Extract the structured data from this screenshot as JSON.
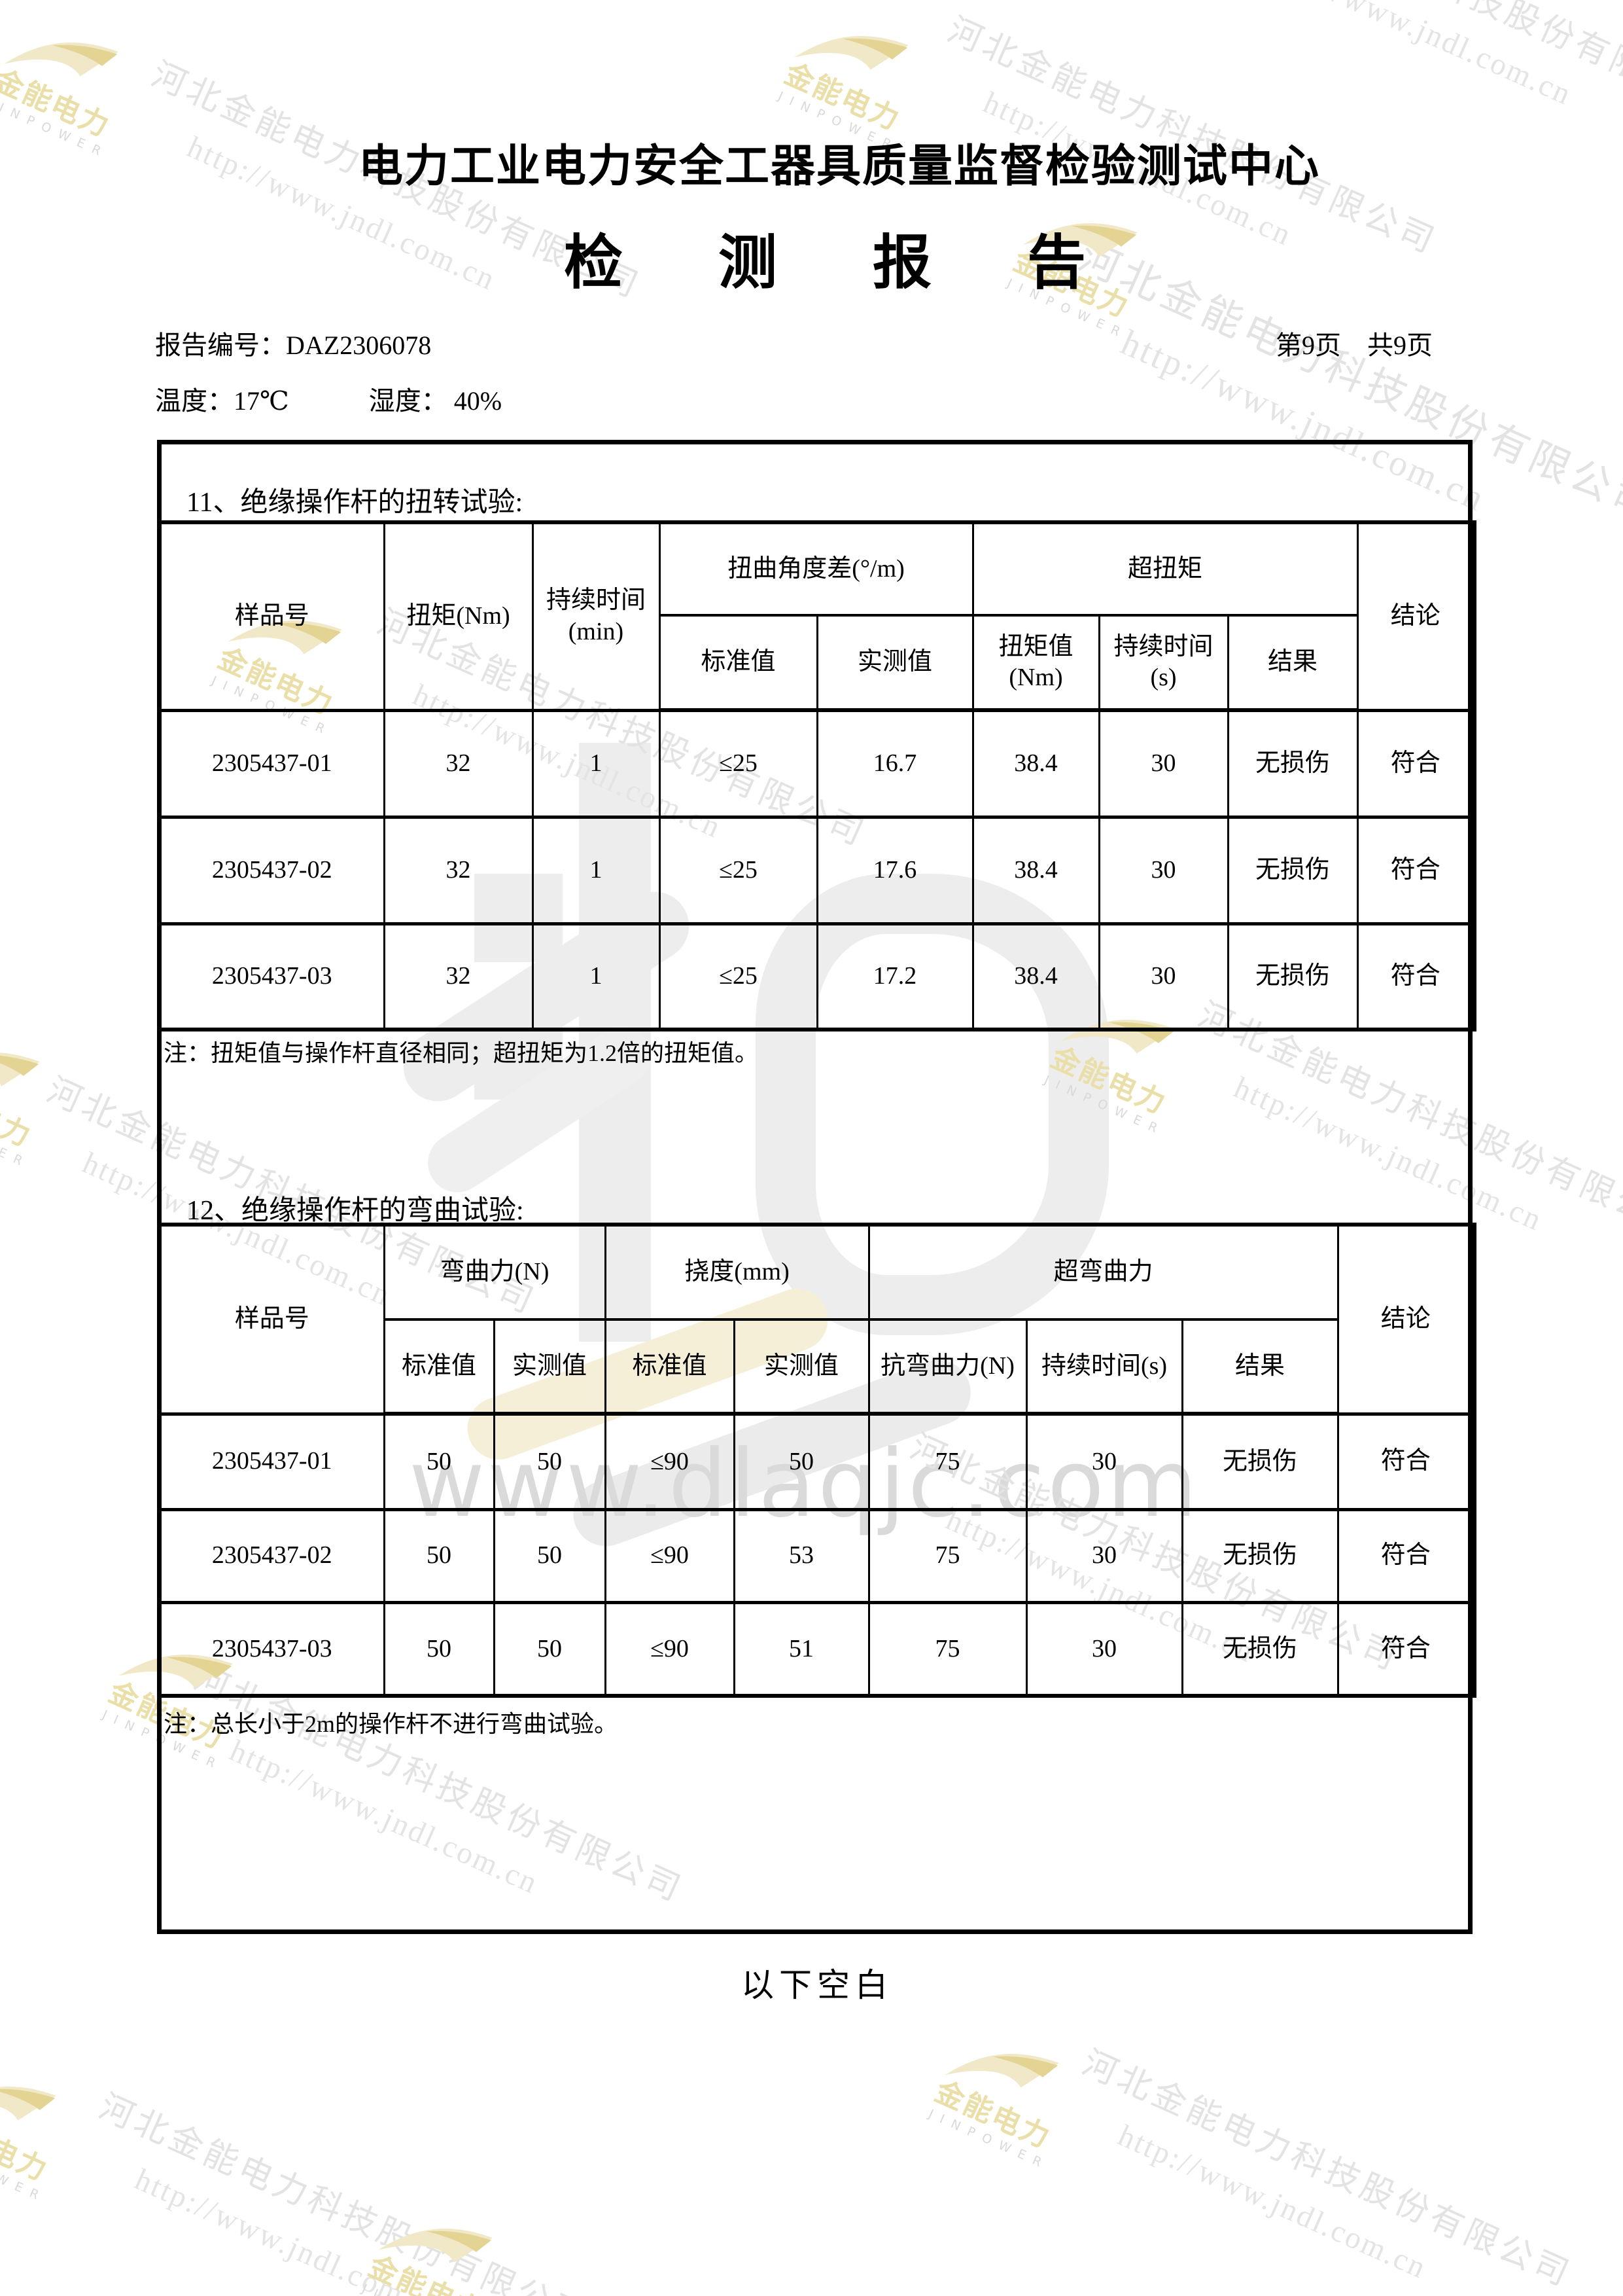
{
  "header": {
    "org_title": "电力工业电力安全工器具质量监督检验测试中心",
    "report_title": "检测报告",
    "report_no_label": "报告编号：",
    "report_no": "DAZ2306078",
    "page_info": "第9页　共9页",
    "temp_label": "温度：",
    "temp_value": "17℃",
    "humidity_label": "湿度：",
    "humidity_value": "40%"
  },
  "section11": {
    "title": "11、绝缘操作杆的扭转试验:",
    "table": {
      "headers": {
        "sample_no": "样品号",
        "torque": "扭矩(Nm)",
        "duration_min": "持续时间(min)",
        "twist_angle_diff": "扭曲角度差(°/m)",
        "over_torque": "超扭矩",
        "conclusion": "结论",
        "standard_value": "标准值",
        "measured_value": "实测值",
        "torque_value": "扭矩值(Nm)",
        "duration_s": "持续时间(s)",
        "result": "结果"
      },
      "rows": [
        [
          "2305437-01",
          "32",
          "1",
          "≤25",
          "16.7",
          "38.4",
          "30",
          "无损伤",
          "符合"
        ],
        [
          "2305437-02",
          "32",
          "1",
          "≤25",
          "17.6",
          "38.4",
          "30",
          "无损伤",
          "符合"
        ],
        [
          "2305437-03",
          "32",
          "1",
          "≤25",
          "17.2",
          "38.4",
          "30",
          "无损伤",
          "符合"
        ]
      ]
    },
    "note": "注：扭矩值与操作杆直径相同；超扭矩为1.2倍的扭矩值。"
  },
  "section12": {
    "title": "12、绝缘操作杆的弯曲试验:",
    "table": {
      "headers": {
        "sample_no": "样品号",
        "bending_force": "弯曲力(N)",
        "deflection": "挠度(mm)",
        "over_bending_force": "超弯曲力",
        "conclusion": "结论",
        "standard_value": "标准值",
        "measured_value": "实测值",
        "anti_bending_force": "抗弯曲力(N)",
        "duration_s": "持续时间(s)",
        "result": "结果"
      },
      "rows": [
        [
          "2305437-01",
          "50",
          "50",
          "≤90",
          "50",
          "75",
          "30",
          "无损伤",
          "符合"
        ],
        [
          "2305437-02",
          "50",
          "50",
          "≤90",
          "53",
          "75",
          "30",
          "无损伤",
          "符合"
        ],
        [
          "2305437-03",
          "50",
          "50",
          "≤90",
          "51",
          "75",
          "30",
          "无损伤",
          "符合"
        ]
      ]
    },
    "note": "注：总长小于2m的操作杆不进行弯曲试验。"
  },
  "footer": {
    "blank_label": "以下空白"
  },
  "watermarks": {
    "company": "河北金能电力科技股份有限公司",
    "url": "http://www.jndl.com.cn",
    "site": "www.dlaqjc.com",
    "logo_cn": "金能电力",
    "logo_en": "JINPOWER"
  }
}
